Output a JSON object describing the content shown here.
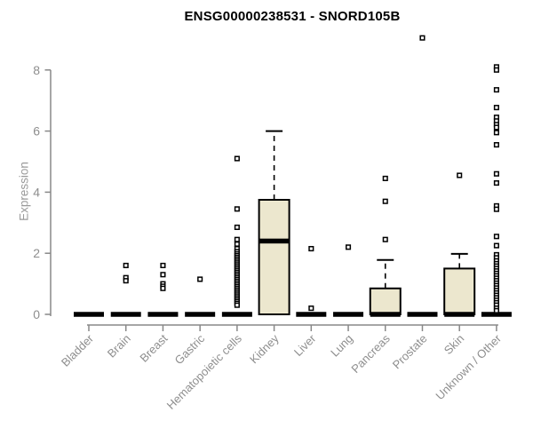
{
  "chart_data": {
    "type": "boxplot",
    "title": "ENSG00000238531 - SNORD105B",
    "ylabel": "Expression",
    "xlabel": "",
    "yticks": [
      0,
      2,
      4,
      6,
      8
    ],
    "ylim": [
      0,
      9.3
    ],
    "grid": false,
    "box_fill_color": "#ECE7CE",
    "box_stroke_color": "#000000",
    "axis_color": "#888888",
    "tick_label_color": "#8e8e8e",
    "categories": [
      {
        "label": "Bladder",
        "q1": 0,
        "median": 0,
        "q3": 0,
        "whisker_low": 0,
        "whisker_high": 0,
        "outliers": []
      },
      {
        "label": "Brain",
        "q1": 0,
        "median": 0,
        "q3": 0,
        "whisker_low": 0,
        "whisker_high": 0,
        "outliers": [
          1.6,
          1.2,
          1.1
        ]
      },
      {
        "label": "Breast",
        "q1": 0,
        "median": 0,
        "q3": 0,
        "whisker_low": 0,
        "whisker_high": 0,
        "outliers": [
          1.6,
          1.3,
          1.0,
          0.92,
          0.85
        ]
      },
      {
        "label": "Gastric",
        "q1": 0,
        "median": 0,
        "q3": 0,
        "whisker_low": 0,
        "whisker_high": 0,
        "outliers": [
          1.15
        ]
      },
      {
        "label": "Hematopoietic cells",
        "q1": 0,
        "median": 0,
        "q3": 0,
        "whisker_low": 0,
        "whisker_high": 0,
        "outliers": [
          5.1,
          3.45,
          2.85,
          2.45,
          2.3,
          2.15,
          2.05,
          1.98,
          1.92,
          1.86,
          1.8,
          1.74,
          1.68,
          1.62,
          1.56,
          1.5,
          1.44,
          1.38,
          1.32,
          1.26,
          1.2,
          1.14,
          1.08,
          1.02,
          0.96,
          0.9,
          0.84,
          0.78,
          0.72,
          0.66,
          0.6,
          0.54,
          0.48,
          0.42,
          0.36,
          0.3
        ]
      },
      {
        "label": "Kidney",
        "q1": 0,
        "median": 2.4,
        "q3": 3.75,
        "whisker_low": 0,
        "whisker_high": 6.0,
        "outliers": []
      },
      {
        "label": "Liver",
        "q1": 0,
        "median": 0,
        "q3": 0,
        "whisker_low": 0,
        "whisker_high": 0,
        "outliers": [
          2.15,
          0.2
        ]
      },
      {
        "label": "Lung",
        "q1": 0,
        "median": 0,
        "q3": 0,
        "whisker_low": 0,
        "whisker_high": 0,
        "outliers": [
          2.2
        ]
      },
      {
        "label": "Pancreas",
        "q1": 0,
        "median": 0,
        "q3": 0.85,
        "whisker_low": 0,
        "whisker_high": 1.78,
        "outliers": [
          4.45,
          3.7,
          2.45
        ]
      },
      {
        "label": "Prostate",
        "q1": 0,
        "median": 0,
        "q3": 0,
        "whisker_low": 0,
        "whisker_high": 0,
        "outliers": [
          9.05
        ]
      },
      {
        "label": "Skin",
        "q1": 0,
        "median": 0,
        "q3": 1.5,
        "whisker_low": 0,
        "whisker_high": 1.98,
        "outliers": [
          4.55
        ]
      },
      {
        "label": "Unknown / Other",
        "q1": 0,
        "median": 0,
        "q3": 0,
        "whisker_low": 0,
        "whisker_high": 0,
        "outliers": [
          8.1,
          8.0,
          7.35,
          6.77,
          6.45,
          6.33,
          6.21,
          6.12,
          5.95,
          5.55,
          4.6,
          4.3,
          3.55,
          3.44,
          2.55,
          2.25,
          1.95,
          1.85,
          1.75,
          1.66,
          1.58,
          1.5,
          1.42,
          1.34,
          1.26,
          1.18,
          1.1,
          1.02,
          0.94,
          0.86,
          0.78,
          0.7,
          0.62,
          0.54,
          0.46,
          0.38,
          0.3,
          0.2,
          0.12
        ]
      }
    ]
  }
}
